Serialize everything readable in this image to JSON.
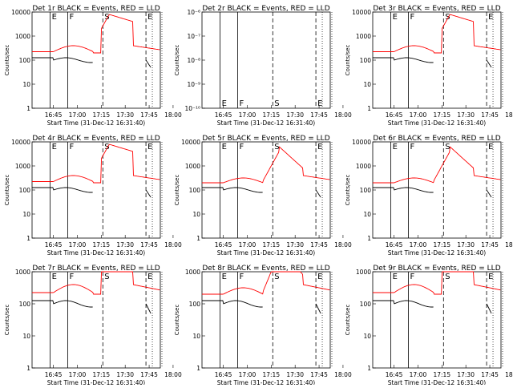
{
  "figure": {
    "x_label": "Start Time (31-Dec-12 16:31:40)",
    "y_label": "Counts/sec",
    "x_ticks": [
      "16:45",
      "17:00",
      "17:15",
      "17:30",
      "17:45",
      "18:00"
    ],
    "line_colors": {
      "events": "#000000",
      "lld": "#ff0000"
    },
    "flag_labels": [
      "E",
      "F",
      "S",
      "E"
    ]
  },
  "chart_data": [
    {
      "type": "line",
      "title": "Det 1r BLACK = Events, RED = LLD",
      "y_scale": "log",
      "ylim": [
        1,
        10000
      ],
      "y_ticks": [
        "1",
        "10",
        "100",
        "1000",
        "10000"
      ],
      "profile": "a"
    },
    {
      "type": "line",
      "title": "Det 2r BLACK = Events, RED = LLD",
      "y_scale": "log",
      "ylim": [
        1e-10,
        1e-06
      ],
      "y_ticks": [
        "10⁻¹⁰",
        "10⁻⁹",
        "10⁻⁸",
        "10⁻⁷",
        "10⁻⁶"
      ],
      "profile": "empty"
    },
    {
      "type": "line",
      "title": "Det 3r BLACK = Events, RED = LLD",
      "y_scale": "log",
      "ylim": [
        1,
        10000
      ],
      "y_ticks": [
        "1",
        "10",
        "100",
        "1000",
        "10000"
      ],
      "profile": "a"
    },
    {
      "type": "line",
      "title": "Det 4r BLACK = Events, RED = LLD",
      "y_scale": "log",
      "ylim": [
        1,
        10000
      ],
      "y_ticks": [
        "1",
        "10",
        "100",
        "1000",
        "10000"
      ],
      "profile": "a"
    },
    {
      "type": "line",
      "title": "Det 5r BLACK = Events, RED = LLD",
      "y_scale": "log",
      "ylim": [
        1,
        10000
      ],
      "y_ticks": [
        "1",
        "10",
        "100",
        "1000",
        "10000"
      ],
      "profile": "b"
    },
    {
      "type": "line",
      "title": "Det 6r BLACK = Events, RED = LLD",
      "y_scale": "log",
      "ylim": [
        1,
        10000
      ],
      "y_ticks": [
        "1",
        "10",
        "100",
        "1000",
        "10000"
      ],
      "profile": "b"
    },
    {
      "type": "line",
      "title": "Det 7r BLACK = Events, RED = LLD",
      "y_scale": "log",
      "ylim": [
        1,
        1000
      ],
      "y_ticks": [
        "1",
        "10",
        "100",
        "1000"
      ],
      "profile": "a"
    },
    {
      "type": "line",
      "title": "Det 8r BLACK = Events, RED = LLD",
      "y_scale": "log",
      "ylim": [
        1,
        1000
      ],
      "y_ticks": [
        "1",
        "10",
        "100",
        "1000"
      ],
      "profile": "b"
    },
    {
      "type": "line",
      "title": "Det 9r BLACK = Events, RED = LLD",
      "y_scale": "log",
      "ylim": [
        1,
        1000
      ],
      "y_ticks": [
        "1",
        "10",
        "100",
        "1000"
      ],
      "profile": "a"
    }
  ]
}
